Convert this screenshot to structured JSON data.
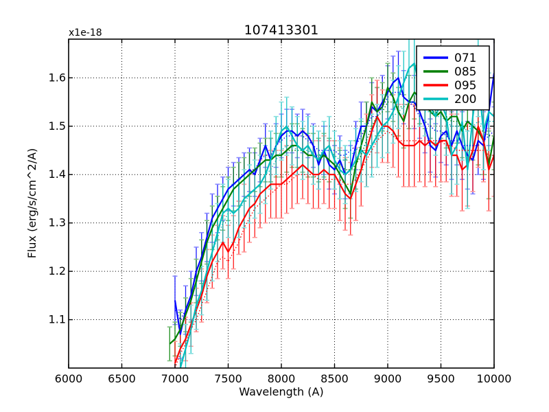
{
  "chart_data": {
    "type": "line",
    "title": "107413301",
    "xlabel": "Wavelength (A)",
    "ylabel": "Flux (erg/s/cm^2/A)",
    "y_offset_factor": "x1e-18",
    "xlim": [
      6000,
      10000
    ],
    "ylim": [
      1.0,
      1.68
    ],
    "x_ticks": [
      6000,
      6500,
      7000,
      7500,
      8000,
      8500,
      9000,
      9500,
      10000
    ],
    "y_ticks": [
      1.1,
      1.2,
      1.3,
      1.4,
      1.5,
      1.6
    ],
    "grid": "dotted-black",
    "legend": {
      "position": "upper right",
      "entries": [
        "071",
        "085",
        "095",
        "200"
      ]
    },
    "series": [
      {
        "name": "071",
        "color": "#0000ff",
        "cap_color": "#8888ff",
        "style": "solid-with-errorbars-and-dotted-companion",
        "x": [
          7000,
          7050,
          7100,
          7150,
          7200,
          7250,
          7300,
          7350,
          7400,
          7450,
          7500,
          7550,
          7600,
          7650,
          7700,
          7750,
          7800,
          7850,
          7900,
          7950,
          8000,
          8050,
          8100,
          8150,
          8200,
          8250,
          8300,
          8350,
          8400,
          8450,
          8500,
          8550,
          8600,
          8650,
          8700,
          8750,
          8800,
          8850,
          8900,
          8950,
          9000,
          9050,
          9100,
          9150,
          9200,
          9250,
          9300,
          9350,
          9400,
          9450,
          9500,
          9550,
          9600,
          9650,
          9700,
          9750,
          9800,
          9850,
          9900,
          9950,
          10000
        ],
        "values": [
          1.14,
          1.07,
          1.12,
          1.15,
          1.2,
          1.23,
          1.27,
          1.31,
          1.33,
          1.35,
          1.37,
          1.38,
          1.39,
          1.4,
          1.41,
          1.4,
          1.43,
          1.46,
          1.43,
          1.46,
          1.48,
          1.49,
          1.49,
          1.48,
          1.49,
          1.48,
          1.46,
          1.42,
          1.45,
          1.42,
          1.41,
          1.43,
          1.4,
          1.41,
          1.46,
          1.5,
          1.5,
          1.54,
          1.53,
          1.55,
          1.57,
          1.59,
          1.6,
          1.56,
          1.55,
          1.55,
          1.53,
          1.5,
          1.46,
          1.45,
          1.48,
          1.49,
          1.46,
          1.49,
          1.46,
          1.44,
          1.43,
          1.47,
          1.46,
          1.53,
          1.61
        ],
        "err": [
          0.05,
          0.05,
          0.05,
          0.05,
          0.05,
          0.05,
          0.05,
          0.05,
          0.05,
          0.045,
          0.045,
          0.045,
          0.045,
          0.045,
          0.045,
          0.045,
          0.045,
          0.045,
          0.045,
          0.045,
          0.045,
          0.045,
          0.045,
          0.045,
          0.045,
          0.045,
          0.045,
          0.05,
          0.05,
          0.05,
          0.05,
          0.05,
          0.05,
          0.05,
          0.05,
          0.05,
          0.05,
          0.05,
          0.05,
          0.055,
          0.055,
          0.055,
          0.055,
          0.055,
          0.055,
          0.055,
          0.055,
          0.055,
          0.055,
          0.055,
          0.055,
          0.07,
          0.07,
          0.07,
          0.07,
          0.07,
          0.07,
          0.07,
          0.07,
          0.07,
          0.07
        ],
        "dotted": [
          1.12,
          1.1,
          1.12,
          1.15,
          1.2,
          1.23,
          1.27,
          1.31,
          1.33,
          1.35,
          1.37,
          1.38,
          1.39,
          1.4,
          1.41,
          1.41,
          1.43,
          1.44,
          1.44,
          1.46,
          1.47,
          1.48,
          1.48,
          1.48,
          1.48,
          1.47,
          1.46,
          1.45,
          1.45,
          1.45,
          1.45,
          1.44,
          1.44,
          1.45,
          1.46,
          1.48,
          1.5,
          1.52,
          1.52,
          1.54,
          1.56,
          1.57,
          1.57,
          1.56,
          1.55,
          1.54,
          1.52,
          1.51,
          1.5,
          1.49,
          1.49,
          1.48,
          1.47,
          1.47,
          1.46,
          1.46,
          1.46,
          1.46,
          1.47,
          1.48,
          1.49
        ]
      },
      {
        "name": "085",
        "color": "#007f00",
        "cap_color": "#7fbf7f",
        "style": "solid-with-errorbars-and-dotted-companion",
        "x": [
          6950,
          7000,
          7050,
          7100,
          7150,
          7200,
          7250,
          7300,
          7350,
          7400,
          7450,
          7500,
          7550,
          7600,
          7650,
          7700,
          7750,
          7800,
          7850,
          7900,
          7950,
          8000,
          8050,
          8100,
          8150,
          8200,
          8250,
          8300,
          8350,
          8400,
          8450,
          8500,
          8550,
          8600,
          8650,
          8700,
          8750,
          8800,
          8850,
          8900,
          8950,
          9000,
          9050,
          9100,
          9150,
          9200,
          9250,
          9300,
          9350,
          9400,
          9450,
          9500,
          9550,
          9600,
          9650,
          9700,
          9750,
          9800,
          9850,
          9900,
          9950,
          10000
        ],
        "values": [
          1.05,
          1.06,
          1.08,
          1.11,
          1.14,
          1.18,
          1.22,
          1.26,
          1.29,
          1.31,
          1.33,
          1.35,
          1.37,
          1.38,
          1.39,
          1.4,
          1.41,
          1.42,
          1.43,
          1.43,
          1.44,
          1.44,
          1.45,
          1.46,
          1.46,
          1.45,
          1.44,
          1.44,
          1.43,
          1.44,
          1.43,
          1.42,
          1.4,
          1.38,
          1.36,
          1.42,
          1.46,
          1.5,
          1.55,
          1.53,
          1.54,
          1.58,
          1.56,
          1.53,
          1.51,
          1.55,
          1.57,
          1.56,
          1.55,
          1.53,
          1.52,
          1.53,
          1.51,
          1.52,
          1.52,
          1.49,
          1.51,
          1.5,
          1.49,
          1.47,
          1.42,
          1.48
        ],
        "err": [
          0.035,
          0.035,
          0.035,
          0.035,
          0.045,
          0.045,
          0.045,
          0.045,
          0.045,
          0.045,
          0.045,
          0.045,
          0.045,
          0.045,
          0.045,
          0.045,
          0.045,
          0.045,
          0.045,
          0.045,
          0.045,
          0.045,
          0.045,
          0.045,
          0.045,
          0.045,
          0.045,
          0.045,
          0.045,
          0.045,
          0.045,
          0.05,
          0.05,
          0.05,
          0.05,
          0.05,
          0.05,
          0.05,
          0.05,
          0.05,
          0.05,
          0.05,
          0.05,
          0.05,
          0.055,
          0.055,
          0.055,
          0.055,
          0.055,
          0.055,
          0.055,
          0.055,
          0.055,
          0.055,
          0.055,
          0.055,
          0.07,
          0.07,
          0.07,
          0.07,
          0.07,
          0.07
        ],
        "dotted": [
          1.05,
          1.06,
          1.08,
          1.11,
          1.14,
          1.18,
          1.22,
          1.26,
          1.29,
          1.31,
          1.33,
          1.35,
          1.37,
          1.38,
          1.39,
          1.4,
          1.41,
          1.42,
          1.43,
          1.43,
          1.44,
          1.44,
          1.45,
          1.45,
          1.45,
          1.45,
          1.44,
          1.44,
          1.44,
          1.44,
          1.43,
          1.42,
          1.42,
          1.41,
          1.41,
          1.42,
          1.44,
          1.47,
          1.5,
          1.52,
          1.53,
          1.55,
          1.55,
          1.54,
          1.54,
          1.55,
          1.55,
          1.55,
          1.54,
          1.53,
          1.53,
          1.52,
          1.52,
          1.51,
          1.51,
          1.5,
          1.5,
          1.5,
          1.49,
          1.49,
          1.48,
          1.48
        ]
      },
      {
        "name": "095",
        "color": "#ff0000",
        "cap_color": "#ff9999",
        "style": "solid-with-errorbars-and-dotted-companion",
        "x": [
          7000,
          7050,
          7100,
          7150,
          7200,
          7250,
          7300,
          7350,
          7400,
          7450,
          7500,
          7550,
          7600,
          7650,
          7700,
          7750,
          7800,
          7850,
          7900,
          7950,
          8000,
          8050,
          8100,
          8150,
          8200,
          8250,
          8300,
          8350,
          8400,
          8450,
          8500,
          8550,
          8600,
          8650,
          8700,
          8750,
          8800,
          8850,
          8900,
          8950,
          9000,
          9050,
          9100,
          9150,
          9200,
          9250,
          9300,
          9350,
          9400,
          9450,
          9500,
          9550,
          9600,
          9650,
          9700,
          9750,
          9800,
          9850,
          9900,
          9950,
          10000
        ],
        "values": [
          1.01,
          1.04,
          1.06,
          1.09,
          1.12,
          1.15,
          1.19,
          1.22,
          1.24,
          1.26,
          1.24,
          1.26,
          1.29,
          1.31,
          1.33,
          1.34,
          1.36,
          1.37,
          1.38,
          1.38,
          1.38,
          1.39,
          1.4,
          1.41,
          1.42,
          1.41,
          1.4,
          1.4,
          1.41,
          1.4,
          1.4,
          1.38,
          1.36,
          1.35,
          1.38,
          1.41,
          1.45,
          1.49,
          1.52,
          1.5,
          1.5,
          1.49,
          1.47,
          1.46,
          1.46,
          1.46,
          1.47,
          1.46,
          1.47,
          1.46,
          1.47,
          1.47,
          1.44,
          1.44,
          1.41,
          1.42,
          1.45,
          1.5,
          1.47,
          1.41,
          1.44
        ],
        "err": [
          0.045,
          0.045,
          0.045,
          0.045,
          0.045,
          0.055,
          0.055,
          0.055,
          0.055,
          0.055,
          0.055,
          0.055,
          0.055,
          0.07,
          0.07,
          0.07,
          0.07,
          0.07,
          0.07,
          0.07,
          0.07,
          0.07,
          0.07,
          0.07,
          0.07,
          0.07,
          0.07,
          0.07,
          0.07,
          0.07,
          0.07,
          0.075,
          0.075,
          0.075,
          0.075,
          0.075,
          0.075,
          0.075,
          0.075,
          0.075,
          0.075,
          0.075,
          0.075,
          0.085,
          0.085,
          0.085,
          0.085,
          0.085,
          0.085,
          0.085,
          0.085,
          0.085,
          0.085,
          0.085,
          0.085,
          0.085,
          0.085,
          0.085,
          0.085,
          0.085,
          0.085
        ],
        "dotted": [
          1.0,
          1.03,
          1.05,
          1.08,
          1.1,
          1.13,
          1.16,
          1.19,
          1.22,
          1.23,
          1.22,
          1.24,
          1.26,
          1.29,
          1.31,
          1.33,
          1.34,
          1.35,
          1.36,
          1.37,
          1.38,
          1.38,
          1.39,
          1.4,
          1.4,
          1.4,
          1.4,
          1.39,
          1.39,
          1.39,
          1.39,
          1.39,
          1.38,
          1.38,
          1.39,
          1.41,
          1.43,
          1.45,
          1.47,
          1.48,
          1.49,
          1.48,
          1.47,
          1.47,
          1.47,
          1.47,
          1.47,
          1.47,
          1.47,
          1.47,
          1.47,
          1.46,
          1.46,
          1.45,
          1.45,
          1.45,
          1.45,
          1.45,
          1.45,
          1.44,
          1.44
        ]
      },
      {
        "name": "200",
        "color": "#00bfbf",
        "cap_color": "#87dfdf",
        "style": "solid-with-errorbars-and-dotted-companion",
        "x": [
          7050,
          7100,
          7150,
          7200,
          7250,
          7300,
          7350,
          7400,
          7450,
          7500,
          7550,
          7600,
          7650,
          7700,
          7750,
          7800,
          7850,
          7900,
          7950,
          8000,
          8050,
          8100,
          8150,
          8200,
          8250,
          8300,
          8350,
          8400,
          8450,
          8500,
          8550,
          8600,
          8650,
          8700,
          8750,
          8800,
          8850,
          8900,
          8950,
          9000,
          9050,
          9100,
          9150,
          9200,
          9250,
          9300,
          9350,
          9400,
          9450,
          9500,
          9550,
          9600,
          9650,
          9700,
          9750,
          9800,
          9850,
          9900,
          9950,
          10000
        ],
        "values": [
          1.0,
          1.04,
          1.08,
          1.13,
          1.16,
          1.2,
          1.24,
          1.28,
          1.32,
          1.33,
          1.32,
          1.33,
          1.35,
          1.36,
          1.37,
          1.38,
          1.4,
          1.43,
          1.46,
          1.49,
          1.5,
          1.48,
          1.46,
          1.45,
          1.46,
          1.44,
          1.43,
          1.45,
          1.46,
          1.43,
          1.41,
          1.4,
          1.41,
          1.43,
          1.45,
          1.44,
          1.46,
          1.48,
          1.5,
          1.51,
          1.53,
          1.56,
          1.59,
          1.62,
          1.63,
          1.58,
          1.56,
          1.54,
          1.52,
          1.55,
          1.52,
          1.44,
          1.46,
          1.51,
          1.41,
          1.52,
          1.6,
          1.49,
          1.53,
          1.52
        ],
        "err": [
          0.05,
          0.05,
          0.05,
          0.05,
          0.05,
          0.06,
          0.06,
          0.06,
          0.06,
          0.06,
          0.06,
          0.06,
          0.06,
          0.06,
          0.06,
          0.06,
          0.06,
          0.06,
          0.06,
          0.06,
          0.06,
          0.06,
          0.06,
          0.06,
          0.06,
          0.06,
          0.06,
          0.06,
          0.06,
          0.06,
          0.06,
          0.06,
          0.06,
          0.065,
          0.065,
          0.065,
          0.065,
          0.065,
          0.065,
          0.065,
          0.065,
          0.065,
          0.065,
          0.065,
          0.065,
          0.08,
          0.08,
          0.08,
          0.08,
          0.08,
          0.08,
          0.08,
          0.08,
          0.08,
          0.08,
          0.08,
          0.08,
          0.08,
          0.08,
          0.08
        ],
        "dotted": [
          1.01,
          1.04,
          1.08,
          1.12,
          1.16,
          1.2,
          1.24,
          1.27,
          1.3,
          1.32,
          1.32,
          1.33,
          1.34,
          1.36,
          1.37,
          1.38,
          1.4,
          1.41,
          1.43,
          1.45,
          1.46,
          1.46,
          1.45,
          1.45,
          1.45,
          1.44,
          1.44,
          1.45,
          1.45,
          1.44,
          1.43,
          1.43,
          1.44,
          1.45,
          1.46,
          1.46,
          1.46,
          1.47,
          1.49,
          1.51,
          1.52,
          1.53,
          1.54,
          1.55,
          1.55,
          1.54,
          1.53,
          1.53,
          1.52,
          1.52,
          1.51,
          1.5,
          1.5,
          1.5,
          1.49,
          1.5,
          1.51,
          1.5,
          1.51,
          1.51
        ]
      }
    ]
  }
}
